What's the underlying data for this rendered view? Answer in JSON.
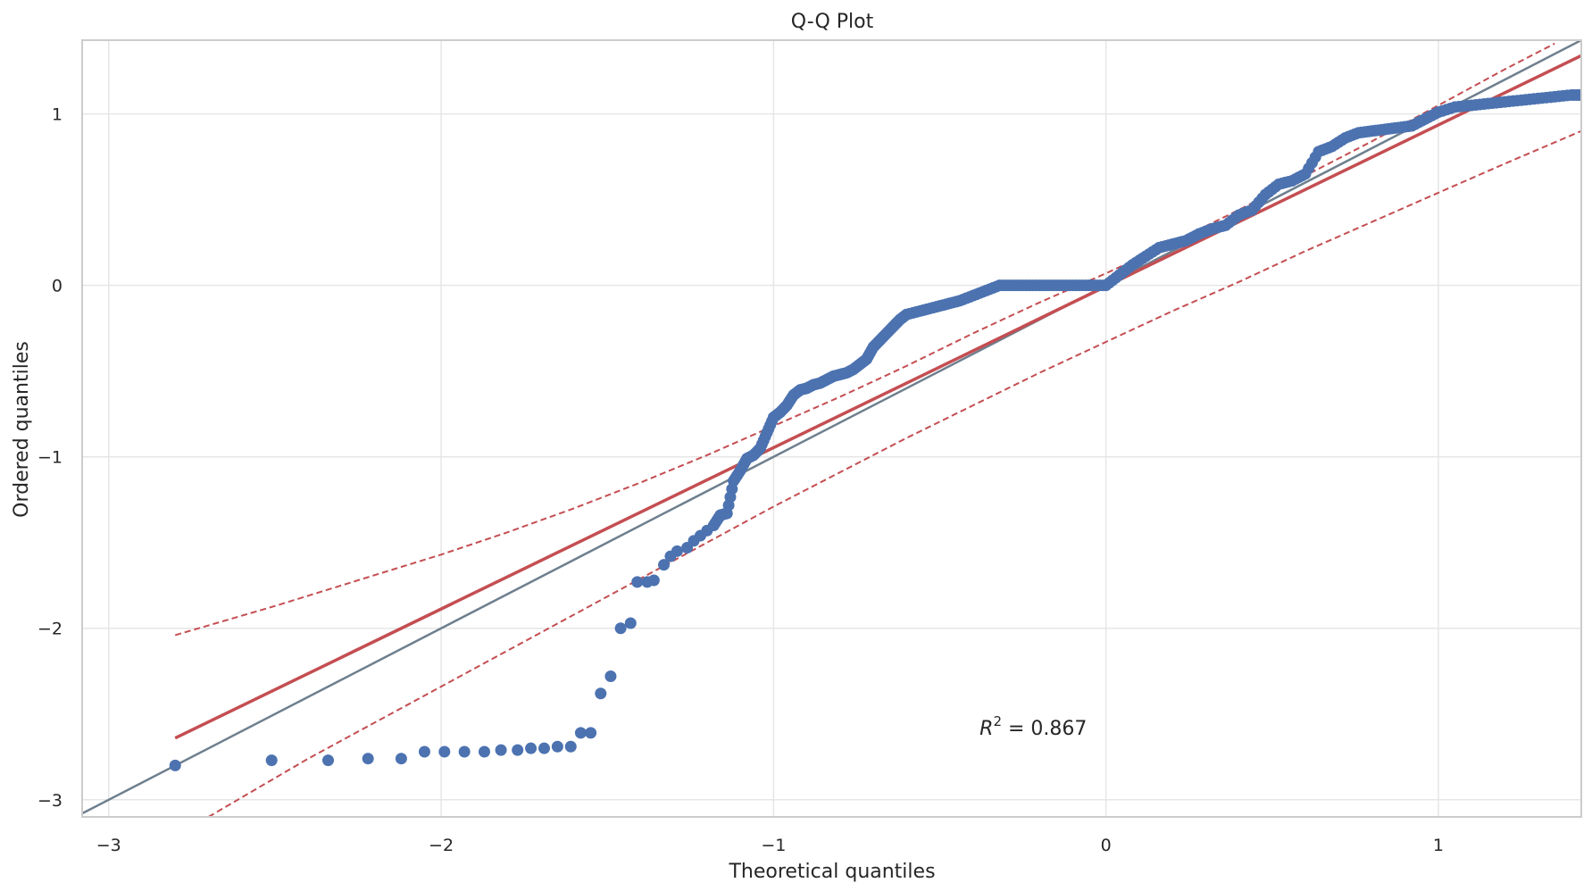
{
  "chart_data": {
    "type": "scatter",
    "title": "Q-Q Plot",
    "xlabel": "Theoretical quantiles",
    "ylabel": "Ordered quantiles",
    "xlim": [
      -3.08,
      1.43
    ],
    "ylim": [
      -3.1,
      1.43
    ],
    "xticks": [
      -3,
      -2,
      -1,
      0,
      1
    ],
    "yticks": [
      -3,
      -2,
      -1,
      0,
      1
    ],
    "xtick_labels": [
      "−3",
      "−2",
      "−1",
      "0",
      "1"
    ],
    "ytick_labels": [
      "−3",
      "−2",
      "−1",
      "0",
      "1"
    ],
    "grid": true,
    "annotation": {
      "symbol": "R",
      "superscript": "2",
      "text": " = 0.867",
      "x": -0.38,
      "y": -2.62
    },
    "colors": {
      "points": "#4c72b0",
      "fit_line": "#c44e52",
      "reference_line": "#6e7f8e",
      "grid": "#e6e6e6",
      "frame": "#cccccc"
    },
    "reference_line": {
      "x": [
        -3.08,
        1.43
      ],
      "y": [
        -3.08,
        1.43
      ]
    },
    "fit_line": {
      "x": [
        -2.8,
        1.43
      ],
      "y": [
        -2.64,
        1.34
      ]
    },
    "confidence_upper": {
      "x": [
        -2.8,
        -2.5,
        -2.2,
        -2.0,
        -1.8,
        -1.6,
        -1.4,
        -1.2,
        -1.0,
        -0.8,
        -0.6,
        -0.4,
        -0.2,
        0.0,
        0.2,
        0.4,
        0.6,
        0.8,
        1.0,
        1.2,
        1.35
      ],
      "y": [
        -2.04,
        -1.87,
        -1.69,
        -1.57,
        -1.44,
        -1.3,
        -1.15,
        -0.99,
        -0.82,
        -0.65,
        -0.47,
        -0.28,
        -0.1,
        0.07,
        0.25,
        0.44,
        0.64,
        0.84,
        1.05,
        1.26,
        1.41
      ]
    },
    "confidence_lower": {
      "x": [
        -2.7,
        -2.4,
        -2.2,
        -2.0,
        -1.8,
        -1.6,
        -1.4,
        -1.2,
        -1.0,
        -0.8,
        -0.6,
        -0.4,
        -0.2,
        0.0,
        0.2,
        0.4,
        0.6,
        0.8,
        1.0,
        1.2,
        1.43
      ],
      "y": [
        -3.1,
        -2.76,
        -2.55,
        -2.34,
        -2.13,
        -1.92,
        -1.71,
        -1.5,
        -1.29,
        -1.09,
        -0.89,
        -0.7,
        -0.51,
        -0.33,
        -0.15,
        0.02,
        0.2,
        0.37,
        0.54,
        0.71,
        0.9
      ]
    },
    "series": [
      {
        "x": [
          -2.8,
          -2.51,
          -2.34,
          -2.22,
          -2.12,
          -2.05,
          -1.99,
          -1.93,
          -1.87,
          -1.82,
          -1.77,
          -1.73,
          -1.69,
          -1.65,
          -1.61,
          -1.58,
          -1.55,
          -1.52,
          -1.49,
          -1.46,
          -1.43,
          -1.41,
          -1.38,
          -1.36,
          -1.33,
          -1.31,
          -1.29,
          -1.26,
          -1.24,
          -1.22,
          -1.2,
          -1.18,
          -1.16,
          -1.14,
          -1.12,
          -1.1,
          -1.08,
          -1.06,
          -1.04,
          -1.02,
          -1.0,
          -0.98,
          -0.96,
          -0.94,
          -0.92,
          -0.9,
          -0.88,
          -0.86,
          -0.84,
          -0.82,
          -0.8,
          -0.78,
          -0.76,
          -0.74,
          -0.72,
          -0.7,
          -0.68,
          -0.66,
          -0.64,
          -0.62,
          -0.6,
          -0.56,
          -0.52,
          -0.48,
          -0.44,
          -0.4,
          -0.36,
          -0.32,
          -0.28,
          -0.24,
          -0.2,
          -0.16,
          -0.12,
          -0.08,
          -0.04,
          0.0,
          0.04,
          0.08,
          0.12,
          0.16,
          0.2,
          0.24,
          0.28,
          0.32,
          0.36,
          0.4,
          0.44,
          0.48,
          0.52,
          0.56,
          0.6,
          0.64,
          0.68,
          0.72,
          0.76,
          0.8,
          0.84,
          0.88,
          0.92,
          0.96,
          1.0,
          1.05,
          1.1,
          1.15,
          1.2,
          1.25,
          1.3,
          1.35,
          1.4,
          1.43
        ],
        "y": [
          -2.8,
          -2.77,
          -2.77,
          -2.76,
          -2.76,
          -2.72,
          -2.72,
          -2.72,
          -2.72,
          -2.71,
          -2.71,
          -2.7,
          -2.7,
          -2.69,
          -2.69,
          -2.61,
          -2.61,
          -2.38,
          -2.28,
          -2.0,
          -1.97,
          -1.73,
          -1.73,
          -1.72,
          -1.63,
          -1.58,
          -1.55,
          -1.53,
          -1.49,
          -1.46,
          -1.43,
          -1.4,
          -1.34,
          -1.33,
          -1.14,
          -1.08,
          -1.01,
          -0.99,
          -0.95,
          -0.86,
          -0.77,
          -0.74,
          -0.7,
          -0.64,
          -0.61,
          -0.6,
          -0.58,
          -0.57,
          -0.55,
          -0.53,
          -0.52,
          -0.51,
          -0.49,
          -0.46,
          -0.43,
          -0.36,
          -0.32,
          -0.28,
          -0.24,
          -0.2,
          -0.17,
          -0.15,
          -0.13,
          -0.11,
          -0.09,
          -0.06,
          -0.03,
          0.0,
          0.0,
          0.0,
          0.0,
          0.0,
          0.0,
          0.0,
          0.0,
          0.0,
          0.06,
          0.12,
          0.17,
          0.22,
          0.24,
          0.26,
          0.3,
          0.33,
          0.35,
          0.41,
          0.44,
          0.53,
          0.59,
          0.61,
          0.65,
          0.78,
          0.81,
          0.86,
          0.89,
          0.9,
          0.91,
          0.92,
          0.93,
          0.97,
          1.01,
          1.04,
          1.05,
          1.06,
          1.07,
          1.08,
          1.09,
          1.1,
          1.11,
          1.11
        ]
      }
    ]
  }
}
